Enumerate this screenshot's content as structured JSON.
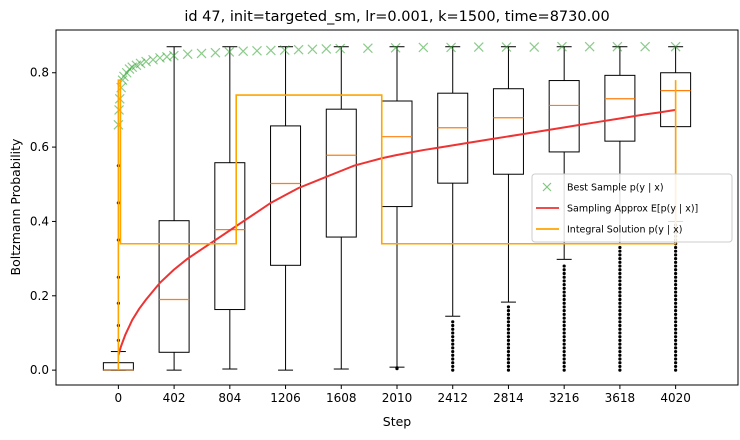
{
  "chart_data": {
    "type": "box",
    "title": "id 47, init=targeted_sm, lr=0.001, k=1500, time=8730.00",
    "xlabel": "Step",
    "ylabel": "Boltzmann Probability",
    "xlim": [
      -450,
      4470
    ],
    "ylim": [
      -0.04,
      0.915
    ],
    "x_ticks": [
      "0",
      "402",
      "804",
      "1206",
      "1608",
      "2010",
      "2412",
      "2814",
      "3216",
      "3618",
      "4020"
    ],
    "y_ticks": [
      "0.0",
      "0.2",
      "0.4",
      "0.6",
      "0.8"
    ],
    "grid": false,
    "legend_position": "center-right",
    "legend": [
      {
        "label": "Best Sample p(y | x)",
        "marker": "x",
        "color": "#2ca02c"
      },
      {
        "label": "Sampling Approx E[p(y | x)]",
        "marker": "line",
        "color": "#ee3333"
      },
      {
        "label": "Integral Solution p(y | x)",
        "marker": "line",
        "color": "#ffa500"
      }
    ],
    "boxes": [
      {
        "x": 0,
        "q1": 0.0,
        "median": 0.001,
        "q3": 0.02,
        "whisker_low": 0.0,
        "whisker_high": 0.05,
        "outliers": [
          0.08,
          0.12,
          0.18,
          0.25,
          0.35,
          0.45,
          0.55
        ]
      },
      {
        "x": 402,
        "q1": 0.048,
        "median": 0.19,
        "q3": 0.402,
        "whisker_low": 0.0,
        "whisker_high": 0.87,
        "outliers": []
      },
      {
        "x": 804,
        "q1": 0.163,
        "median": 0.378,
        "q3": 0.558,
        "whisker_low": 0.003,
        "whisker_high": 0.87,
        "outliers": []
      },
      {
        "x": 1206,
        "q1": 0.282,
        "median": 0.502,
        "q3": 0.657,
        "whisker_low": 0.0,
        "whisker_high": 0.87,
        "outliers": []
      },
      {
        "x": 1608,
        "q1": 0.358,
        "median": 0.578,
        "q3": 0.702,
        "whisker_low": 0.003,
        "whisker_high": 0.87,
        "outliers": []
      },
      {
        "x": 2010,
        "q1": 0.44,
        "median": 0.628,
        "q3": 0.724,
        "whisker_low": 0.008,
        "whisker_high": 0.87,
        "outliers": [
          0.004,
          0.006
        ]
      },
      {
        "x": 2412,
        "q1": 0.503,
        "median": 0.652,
        "q3": 0.745,
        "whisker_low": 0.145,
        "whisker_high": 0.87,
        "outliers": [
          0.0,
          0.01,
          0.02,
          0.03,
          0.04,
          0.05,
          0.06,
          0.07,
          0.08,
          0.09,
          0.1,
          0.11,
          0.12,
          0.13
        ]
      },
      {
        "x": 2814,
        "q1": 0.527,
        "median": 0.679,
        "q3": 0.757,
        "whisker_low": 0.183,
        "whisker_high": 0.87,
        "outliers": [
          0.0,
          0.01,
          0.02,
          0.03,
          0.04,
          0.05,
          0.06,
          0.07,
          0.08,
          0.09,
          0.1,
          0.11,
          0.12,
          0.13,
          0.14,
          0.15,
          0.16,
          0.17
        ]
      },
      {
        "x": 3216,
        "q1": 0.587,
        "median": 0.712,
        "q3": 0.779,
        "whisker_low": 0.298,
        "whisker_high": 0.87,
        "outliers": [
          0.0,
          0.01,
          0.02,
          0.03,
          0.04,
          0.05,
          0.06,
          0.07,
          0.08,
          0.09,
          0.1,
          0.11,
          0.12,
          0.13,
          0.14,
          0.15,
          0.16,
          0.17,
          0.18,
          0.19,
          0.2,
          0.21,
          0.22,
          0.23,
          0.24,
          0.25,
          0.26,
          0.27,
          0.28
        ]
      },
      {
        "x": 3618,
        "q1": 0.616,
        "median": 0.73,
        "q3": 0.793,
        "whisker_low": 0.34,
        "whisker_high": 0.87,
        "outliers": [
          0.0,
          0.01,
          0.02,
          0.03,
          0.04,
          0.05,
          0.06,
          0.07,
          0.08,
          0.09,
          0.1,
          0.11,
          0.12,
          0.13,
          0.14,
          0.15,
          0.16,
          0.17,
          0.18,
          0.19,
          0.2,
          0.21,
          0.22,
          0.23,
          0.24,
          0.25,
          0.26,
          0.27,
          0.28,
          0.29,
          0.3,
          0.31,
          0.32,
          0.33
        ]
      },
      {
        "x": 4020,
        "q1": 0.655,
        "median": 0.752,
        "q3": 0.8,
        "whisker_low": 0.4,
        "whisker_high": 0.87,
        "outliers": [
          0.0,
          0.01,
          0.02,
          0.03,
          0.04,
          0.05,
          0.06,
          0.07,
          0.08,
          0.09,
          0.1,
          0.11,
          0.12,
          0.13,
          0.14,
          0.15,
          0.16,
          0.17,
          0.18,
          0.19,
          0.2,
          0.21,
          0.22,
          0.23,
          0.24,
          0.25,
          0.26,
          0.27,
          0.28,
          0.29,
          0.3,
          0.31,
          0.32,
          0.33,
          0.34,
          0.35,
          0.36,
          0.37,
          0.38,
          0.39
        ]
      }
    ],
    "series": [
      {
        "type": "scatter",
        "marker": "x",
        "color": "#2ca02c",
        "x": [
          0,
          5,
          10,
          20,
          30,
          40,
          60,
          80,
          100,
          130,
          160,
          200,
          250,
          300,
          350,
          400,
          500,
          600,
          700,
          800,
          900,
          1000,
          1100,
          1200,
          1300,
          1400,
          1500,
          1600,
          1800,
          2000,
          2200,
          2400,
          2600,
          2800,
          3000,
          3200,
          3400,
          3600,
          3800,
          4020
        ],
        "y": [
          0.66,
          0.7,
          0.73,
          0.76,
          0.78,
          0.79,
          0.8,
          0.81,
          0.815,
          0.82,
          0.825,
          0.83,
          0.835,
          0.84,
          0.843,
          0.846,
          0.85,
          0.852,
          0.854,
          0.856,
          0.858,
          0.859,
          0.86,
          0.861,
          0.862,
          0.863,
          0.864,
          0.865,
          0.866,
          0.867,
          0.868,
          0.868,
          0.869,
          0.869,
          0.869,
          0.87,
          0.87,
          0.87,
          0.87,
          0.87
        ]
      },
      {
        "type": "line",
        "color": "#ee3333",
        "x": [
          0,
          20,
          50,
          100,
          150,
          200,
          300,
          400,
          500,
          600,
          700,
          800,
          900,
          1000,
          1100,
          1200,
          1300,
          1400,
          1500,
          1600,
          1700,
          1800,
          1900,
          2000,
          2100,
          2200,
          2300,
          2400,
          2500,
          2600,
          2700,
          2800,
          2900,
          3000,
          3100,
          3200,
          3300,
          3400,
          3500,
          3600,
          3700,
          3800,
          3900,
          4020
        ],
        "y": [
          0.04,
          0.065,
          0.095,
          0.135,
          0.165,
          0.19,
          0.235,
          0.27,
          0.3,
          0.325,
          0.35,
          0.375,
          0.4,
          0.425,
          0.45,
          0.47,
          0.49,
          0.505,
          0.52,
          0.535,
          0.55,
          0.56,
          0.57,
          0.578,
          0.585,
          0.592,
          0.598,
          0.604,
          0.61,
          0.616,
          0.622,
          0.628,
          0.634,
          0.64,
          0.646,
          0.652,
          0.658,
          0.664,
          0.67,
          0.676,
          0.682,
          0.688,
          0.693,
          0.7
        ]
      },
      {
        "type": "line",
        "step": true,
        "color": "#ffa500",
        "x": [
          0,
          0,
          10,
          15,
          15,
          30,
          30,
          850,
          850,
          1900,
          1900,
          4020,
          4020
        ],
        "y": [
          0.0,
          0.78,
          0.78,
          0.78,
          0.34,
          0.34,
          0.34,
          0.34,
          0.74,
          0.74,
          0.34,
          0.34,
          0.78
        ]
      }
    ]
  }
}
